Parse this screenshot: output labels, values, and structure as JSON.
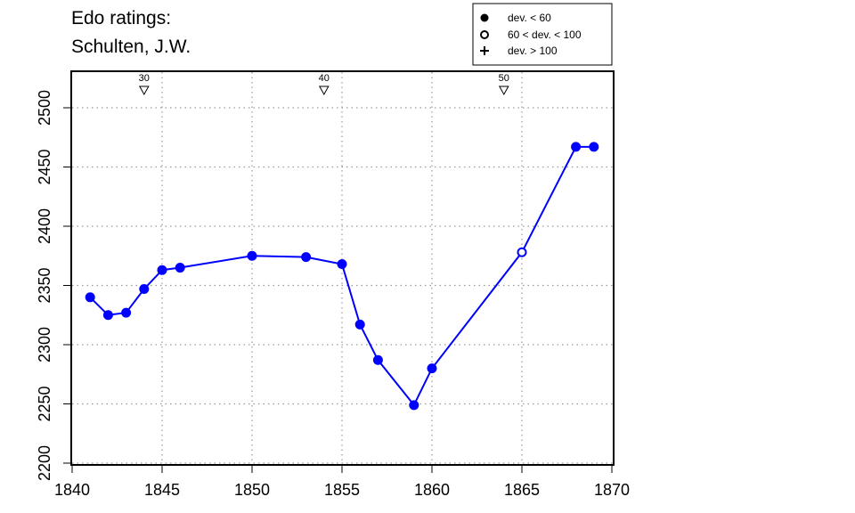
{
  "title_lines": [
    "Edo ratings:",
    "Schulten, J.W."
  ],
  "legend": {
    "entries": [
      {
        "marker": "filled-circle",
        "label": "dev. < 60"
      },
      {
        "marker": "open-circle",
        "label": "60 < dev. < 100"
      },
      {
        "marker": "plus",
        "label": "dev. > 100"
      }
    ]
  },
  "colors": {
    "series": "#0000ff",
    "axis": "#000000",
    "grid": "#999999"
  },
  "chart_data": {
    "type": "line",
    "title": "Edo ratings: Schulten, J.W.",
    "xlabel": "",
    "ylabel": "",
    "xlim": [
      1840,
      1870
    ],
    "ylim": [
      2200,
      2530
    ],
    "xticks": [
      1840,
      1845,
      1850,
      1855,
      1860,
      1865,
      1870
    ],
    "yticks": [
      2200,
      2250,
      2300,
      2350,
      2400,
      2450,
      2500
    ],
    "grid": "dotted, at x 1845 1850 1855 1860 1865 and y 2200-2500",
    "legend_position": "top-right",
    "series": [
      {
        "points": [
          {
            "x": 1841,
            "y": 2340,
            "dev": "< 60"
          },
          {
            "x": 1842,
            "y": 2325,
            "dev": "< 60"
          },
          {
            "x": 1843,
            "y": 2327,
            "dev": "< 60"
          },
          {
            "x": 1844,
            "y": 2347,
            "dev": "< 60"
          },
          {
            "x": 1845,
            "y": 2363,
            "dev": "< 60"
          },
          {
            "x": 1846,
            "y": 2365,
            "dev": "< 60"
          },
          {
            "x": 1850,
            "y": 2375,
            "dev": "< 60"
          },
          {
            "x": 1853,
            "y": 2374,
            "dev": "< 60"
          },
          {
            "x": 1855,
            "y": 2368,
            "dev": "< 60"
          },
          {
            "x": 1856,
            "y": 2317,
            "dev": "< 60"
          },
          {
            "x": 1857,
            "y": 2287,
            "dev": "< 60"
          },
          {
            "x": 1859,
            "y": 2249,
            "dev": "< 60"
          },
          {
            "x": 1860,
            "y": 2280,
            "dev": "< 60"
          },
          {
            "x": 1865,
            "y": 2378,
            "dev": "60-100"
          },
          {
            "x": 1868,
            "y": 2467,
            "dev": "< 60"
          },
          {
            "x": 1869,
            "y": 2467,
            "dev": "< 60"
          }
        ]
      }
    ],
    "age_markers": [
      {
        "x": 1844,
        "label": "30"
      },
      {
        "x": 1854,
        "label": "40"
      },
      {
        "x": 1864,
        "label": "50"
      }
    ]
  }
}
